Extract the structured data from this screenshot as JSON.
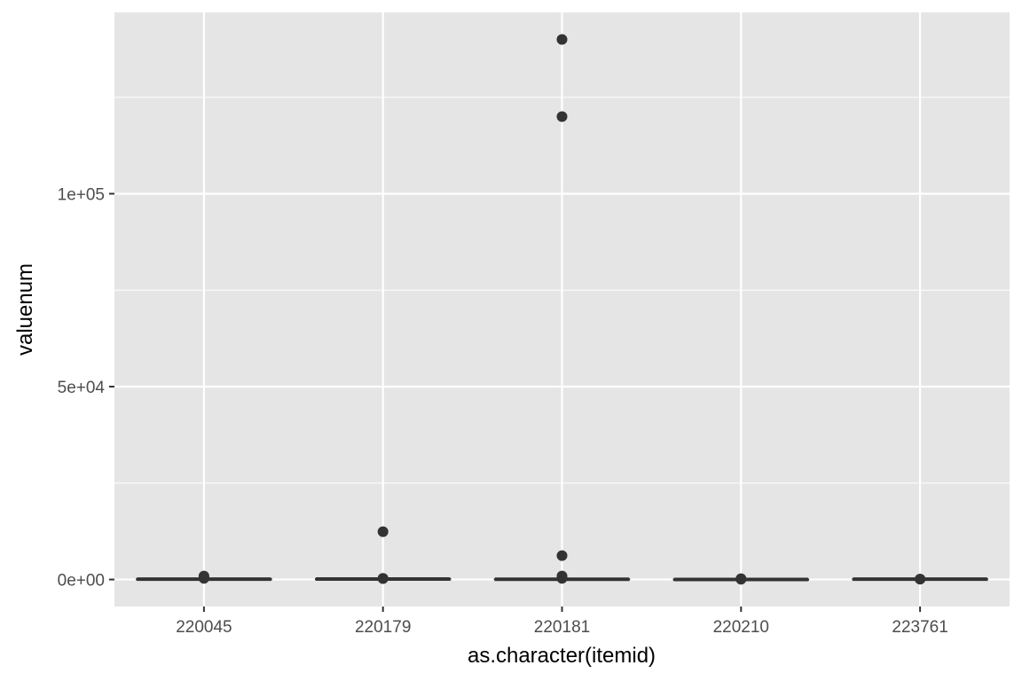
{
  "colors": {
    "panel_background": "#e5e5e5",
    "grid_line": "#ffffff",
    "box_stroke": "#333333",
    "outlier_fill": "#333333",
    "tick_text": "#4d4d4d"
  },
  "chart_data": {
    "type": "boxplot",
    "xlabel": "as.character(itemid)",
    "ylabel": "valuenum",
    "categories": [
      "220045",
      "220179",
      "220181",
      "220210",
      "223761"
    ],
    "ylim": [
      -7000,
      147000
    ],
    "yticks": [
      {
        "value": 0,
        "label": "0e+00"
      },
      {
        "value": 50000,
        "label": "5e+04"
      },
      {
        "value": 100000,
        "label": "1e+05"
      }
    ],
    "y_minor_ticks": [
      25000,
      75000,
      125000
    ],
    "grid": true,
    "legend": "none",
    "boxes": [
      {
        "category": "220045",
        "min": 0,
        "q1": 75,
        "median": 87,
        "q3": 100,
        "max": 150,
        "outliers": [
          900,
          600,
          300
        ]
      },
      {
        "category": "220179",
        "min": 40,
        "q1": 105,
        "median": 120,
        "q3": 138,
        "max": 190,
        "outliers": [
          12400,
          300,
          250
        ]
      },
      {
        "category": "220181",
        "min": 10,
        "q1": 65,
        "median": 77,
        "q3": 90,
        "max": 130,
        "outliers": [
          140000,
          120000,
          6200,
          900,
          500,
          300
        ]
      },
      {
        "category": "220210",
        "min": 0,
        "q1": 16,
        "median": 19,
        "q3": 23,
        "max": 33,
        "outliers": [
          200,
          80
        ]
      },
      {
        "category": "223761",
        "min": 95,
        "q1": 97,
        "median": 98.5,
        "q3": 99.5,
        "max": 103,
        "outliers": [
          110,
          90
        ]
      }
    ]
  }
}
